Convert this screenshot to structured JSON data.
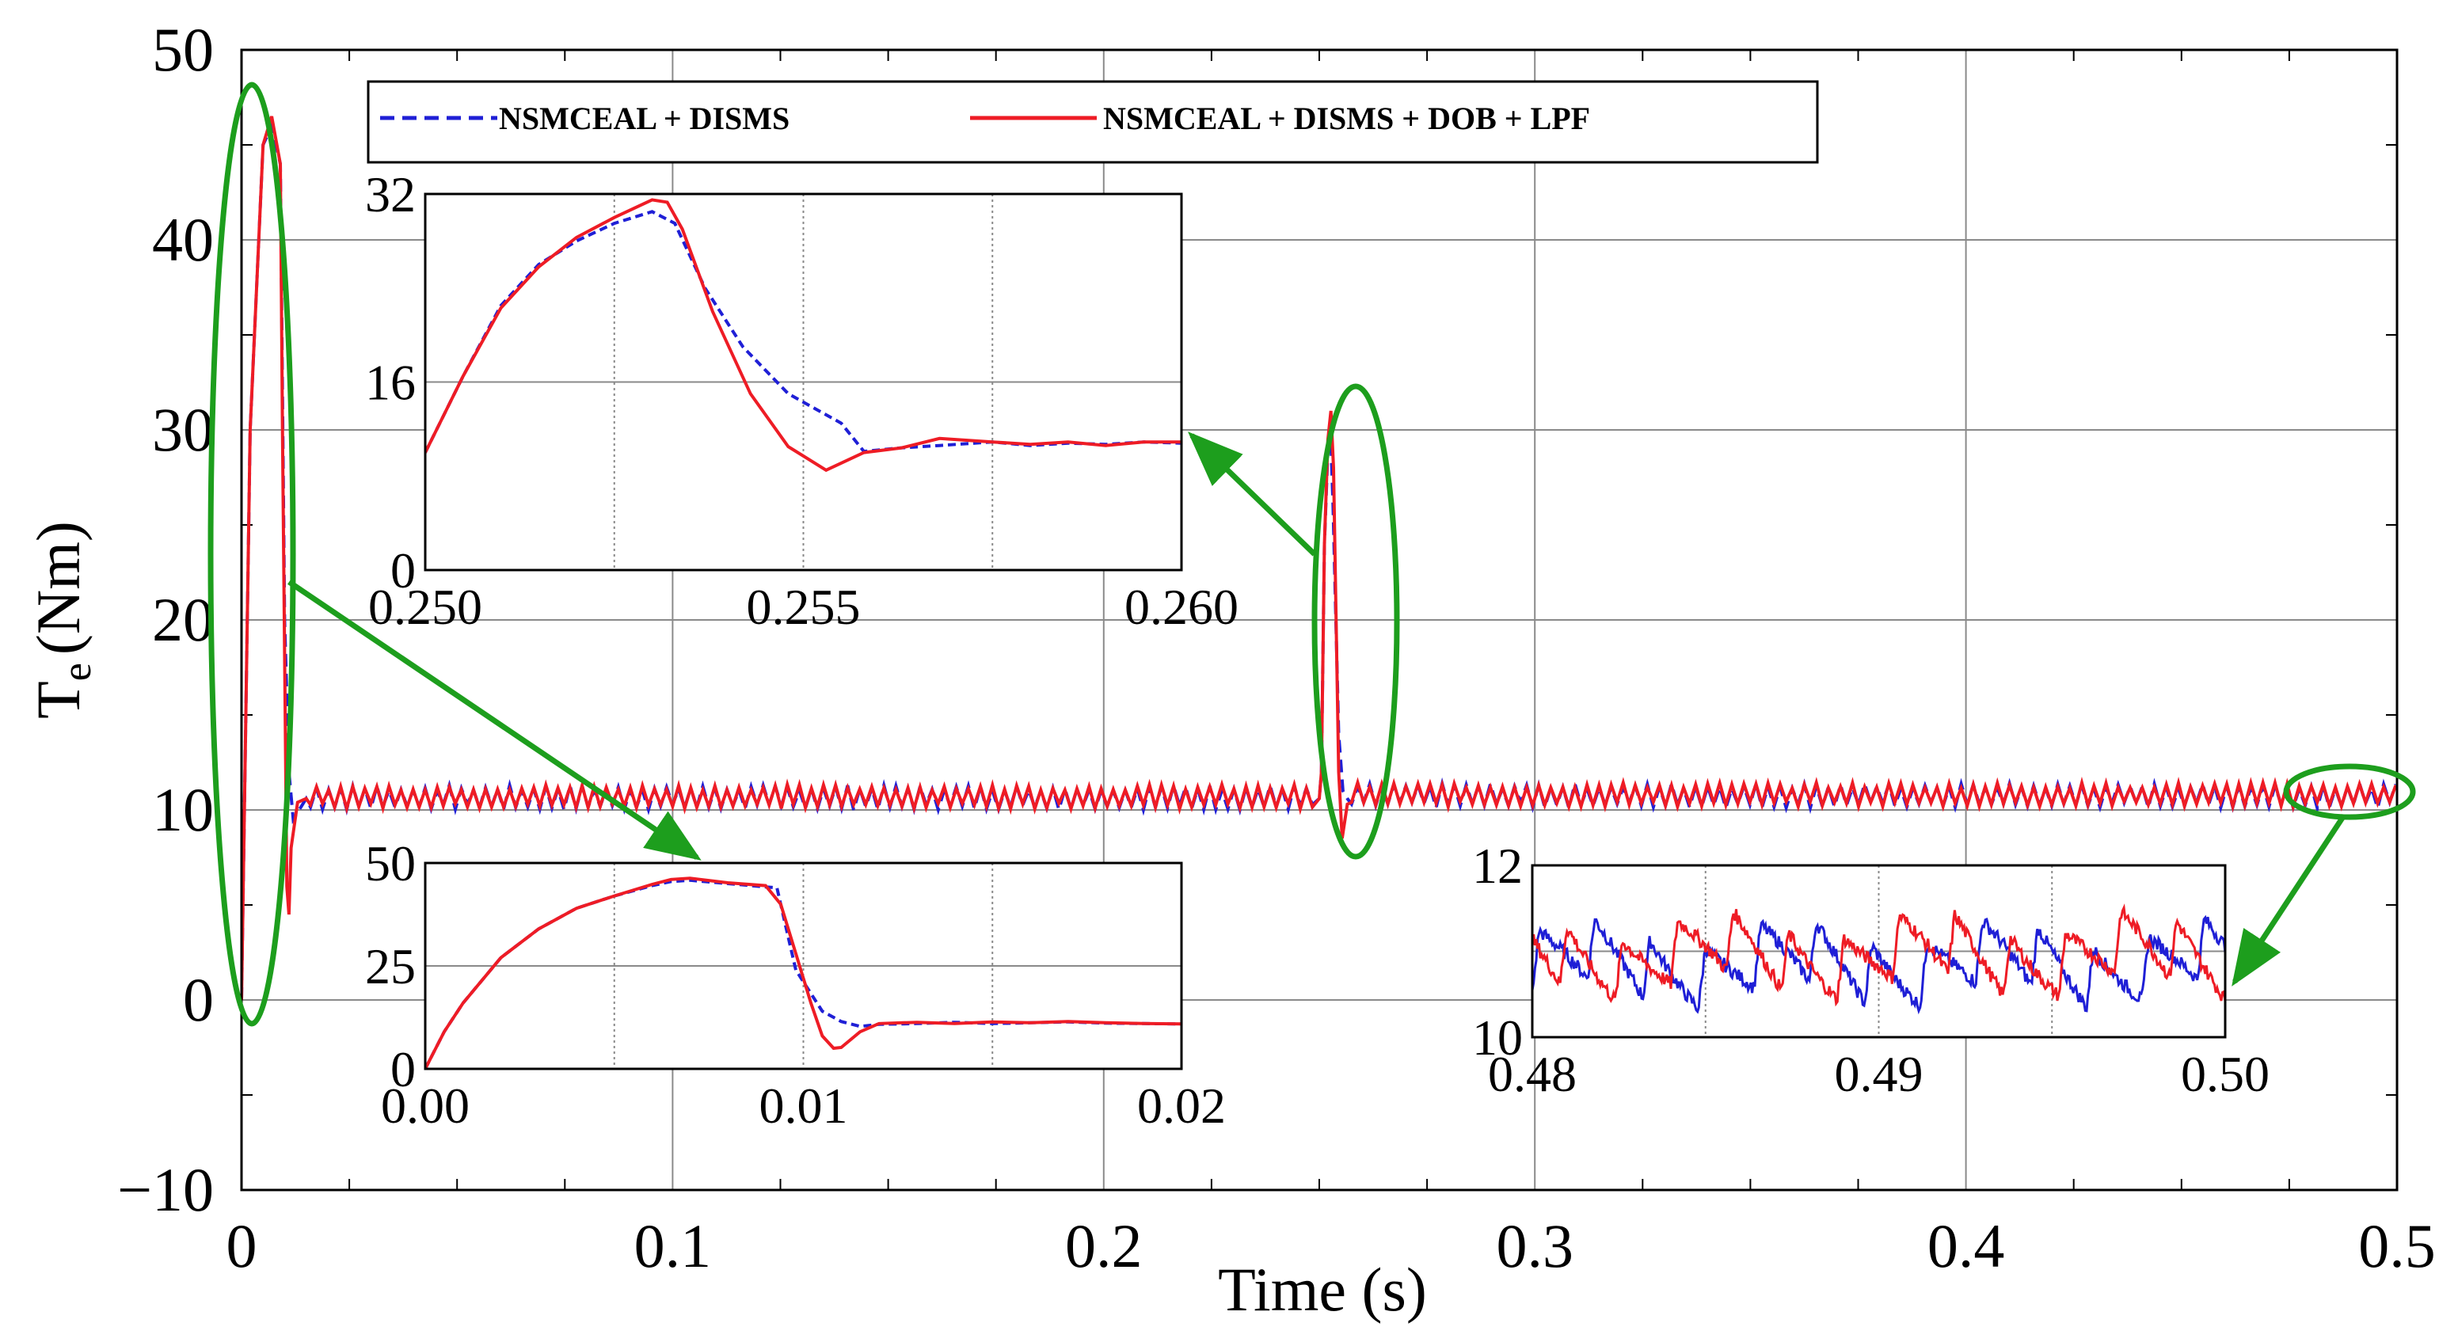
{
  "chart_data": [
    {
      "id": "main",
      "type": "line",
      "xlabel": "Time (s)",
      "ylabel": "T",
      "ylabel_sub": "e",
      "ylabel_unit": "(Nm)",
      "xlim": [
        0,
        0.5
      ],
      "ylim": [
        -10,
        50
      ],
      "xticks": [
        0,
        0.1,
        0.2,
        0.3,
        0.4,
        0.5
      ],
      "xtick_labels": [
        "0",
        "0.1",
        "0.2",
        "0.3",
        "0.4",
        "0.5"
      ],
      "yticks": [
        -10,
        0,
        10,
        20,
        30,
        40,
        50
      ],
      "ytick_labels": [
        "−10",
        "0",
        "10",
        "20",
        "30",
        "40",
        "50"
      ],
      "grid": true,
      "legend": {
        "placement": "top",
        "entries": [
          "NSMCEAL + DISMS",
          "NSMCEAL + DISMS + DOB + LPF"
        ]
      },
      "series": [
        {
          "name": "NSMCEAL + DISMS",
          "color": "#1f1fd6",
          "style": "dashed",
          "x": [
            0,
            0.002,
            0.005,
            0.007,
            0.009,
            0.01,
            0.011,
            0.012,
            0.015,
            0.25,
            0.2505,
            0.2512,
            0.252,
            0.2526,
            0.2532,
            0.2545,
            0.2555,
            0.2565,
            0.26,
            0.5
          ],
          "y": [
            0,
            30,
            45,
            46,
            44,
            20,
            12,
            9.5,
            10.6,
            10.6,
            12,
            24,
            29,
            30,
            26,
            14,
            11,
            10.6,
            10.6,
            10.8
          ]
        },
        {
          "name": "NSMCEAL + DISMS + DOB + LPF",
          "color": "#ee1c25",
          "style": "solid",
          "x": [
            0,
            0.002,
            0.005,
            0.007,
            0.009,
            0.0095,
            0.0105,
            0.011,
            0.0115,
            0.013,
            0.015,
            0.25,
            0.2505,
            0.2512,
            0.252,
            0.2527,
            0.2533,
            0.2545,
            0.2553,
            0.2565,
            0.26,
            0.5
          ],
          "y": [
            0,
            30,
            45,
            46.5,
            44,
            30,
            6,
            4.5,
            8,
            10.4,
            10.6,
            10.6,
            12,
            24,
            29.5,
            31,
            28,
            12,
            8.5,
            10.3,
            10.6,
            10.7
          ]
        }
      ],
      "annotations": [
        {
          "type": "ellipse",
          "target": "startup transient t≈0",
          "color": "#1d9e1d"
        },
        {
          "type": "ellipse",
          "target": "load step t≈0.25 s",
          "color": "#1d9e1d"
        },
        {
          "type": "ellipse",
          "target": "steady state t≈0.5 s",
          "color": "#1d9e1d"
        }
      ]
    },
    {
      "id": "inset-startup",
      "type": "line",
      "xlim": [
        0,
        0.02
      ],
      "ylim": [
        0,
        50
      ],
      "xticks": [
        0,
        0.01,
        0.02
      ],
      "xtick_labels": [
        "0.00",
        "0.01",
        "0.02"
      ],
      "yticks": [
        0,
        25,
        50
      ],
      "ytick_labels": [
        "0",
        "25",
        "50"
      ],
      "series": [
        {
          "name": "NSMCEAL + DISMS",
          "x": [
            0,
            0.0005,
            0.001,
            0.002,
            0.003,
            0.004,
            0.005,
            0.006,
            0.0065,
            0.007,
            0.008,
            0.009,
            0.0093,
            0.0095,
            0.0098,
            0.0105,
            0.011,
            0.0115,
            0.012,
            0.013,
            0.014,
            0.015,
            0.016,
            0.017,
            0.018,
            0.019,
            0.02
          ],
          "y": [
            0,
            9,
            16,
            27,
            34,
            39,
            42,
            44.5,
            45.5,
            45.8,
            45,
            44.2,
            44,
            36,
            24,
            14,
            11.5,
            10.3,
            10.8,
            11,
            11.3,
            11,
            11.2,
            11.4,
            11.1,
            11,
            10.9
          ]
        },
        {
          "name": "NSMCEAL + DISMS + DOB + LPF",
          "x": [
            0,
            0.0005,
            0.001,
            0.002,
            0.003,
            0.004,
            0.005,
            0.006,
            0.0065,
            0.007,
            0.008,
            0.009,
            0.0094,
            0.0098,
            0.0102,
            0.0105,
            0.0108,
            0.011,
            0.0115,
            0.012,
            0.013,
            0.014,
            0.015,
            0.016,
            0.017,
            0.018,
            0.019,
            0.02
          ],
          "y": [
            0,
            9,
            16,
            27,
            34,
            39,
            42,
            44.8,
            46,
            46.3,
            45.2,
            44.5,
            40,
            28,
            16,
            8,
            5,
            5.2,
            9,
            11,
            11.3,
            11,
            11.4,
            11.2,
            11.5,
            11.2,
            11,
            10.9
          ]
        }
      ]
    },
    {
      "id": "inset-load-step",
      "type": "line",
      "xlim": [
        0.25,
        0.26
      ],
      "ylim": [
        0,
        32
      ],
      "xticks": [
        0.25,
        0.255,
        0.26
      ],
      "xtick_labels": [
        "0.250",
        "0.255",
        "0.260"
      ],
      "yticks": [
        0,
        16,
        32
      ],
      "ytick_labels": [
        "0",
        "16",
        "32"
      ],
      "series": [
        {
          "name": "NSMCEAL + DISMS",
          "x": [
            0.25,
            0.2505,
            0.251,
            0.2515,
            0.252,
            0.2525,
            0.253,
            0.2533,
            0.2537,
            0.2542,
            0.2548,
            0.2555,
            0.2558,
            0.2563,
            0.2568,
            0.2575,
            0.258,
            0.2585,
            0.259,
            0.2595,
            0.26
          ],
          "y": [
            10,
            16.5,
            22.5,
            26,
            28,
            29.5,
            30.5,
            29.5,
            24,
            19,
            15,
            12.5,
            10.1,
            10.4,
            10.6,
            10.9,
            10.6,
            10.8,
            10.7,
            10.9,
            10.8
          ]
        },
        {
          "name": "NSMCEAL + DISMS + DOB + LPF",
          "x": [
            0.25,
            0.2505,
            0.251,
            0.2515,
            0.252,
            0.2525,
            0.253,
            0.2532,
            0.2534,
            0.2538,
            0.2543,
            0.2548,
            0.2553,
            0.2558,
            0.2563,
            0.2568,
            0.2575,
            0.258,
            0.2585,
            0.259,
            0.2595,
            0.26
          ],
          "y": [
            10,
            16.5,
            22.3,
            25.8,
            28.3,
            30,
            31.5,
            31.3,
            29,
            22,
            15,
            10.5,
            8.5,
            10,
            10.4,
            11.2,
            10.9,
            10.7,
            10.9,
            10.6,
            10.9,
            10.9
          ]
        }
      ]
    },
    {
      "id": "inset-steady-state",
      "type": "line",
      "xlim": [
        0.48,
        0.5
      ],
      "ylim": [
        10,
        12
      ],
      "xticks": [
        0.48,
        0.49,
        0.5
      ],
      "xtick_labels": [
        "0.48",
        "0.49",
        "0.50"
      ],
      "yticks": [
        10,
        12
      ],
      "ytick_labels": [
        "10",
        "12"
      ],
      "series": [
        {
          "name": "NSMCEAL + DISMS",
          "ripple": {
            "mean": 10.85,
            "amplitude": 0.35,
            "period": 0.0016
          }
        },
        {
          "name": "NSMCEAL + DISMS + DOB + LPF",
          "ripple": {
            "mean": 10.95,
            "amplitude": 0.35,
            "period": 0.0016
          }
        }
      ]
    }
  ]
}
